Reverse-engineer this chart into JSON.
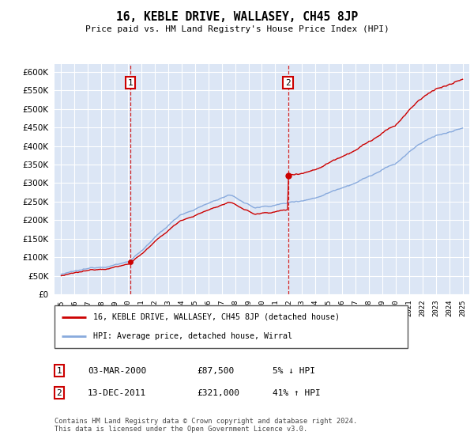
{
  "title": "16, KEBLE DRIVE, WALLASEY, CH45 8JP",
  "subtitle": "Price paid vs. HM Land Registry's House Price Index (HPI)",
  "ylim": [
    0,
    620000
  ],
  "yticks": [
    0,
    50000,
    100000,
    150000,
    200000,
    250000,
    300000,
    350000,
    400000,
    450000,
    500000,
    550000,
    600000
  ],
  "plot_bg_color": "#dce6f5",
  "line_color_red": "#cc0000",
  "line_color_blue": "#88aadd",
  "sale1_date": 2000.17,
  "sale1_price": 87500,
  "sale1_label": "1",
  "sale2_date": 2011.95,
  "sale2_price": 321000,
  "sale2_label": "2",
  "legend_line1": "16, KEBLE DRIVE, WALLASEY, CH45 8JP (detached house)",
  "legend_line2": "HPI: Average price, detached house, Wirral",
  "table_row1_num": "1",
  "table_row1_date": "03-MAR-2000",
  "table_row1_price": "£87,500",
  "table_row1_hpi": "5% ↓ HPI",
  "table_row2_num": "2",
  "table_row2_date": "13-DEC-2011",
  "table_row2_price": "£321,000",
  "table_row2_hpi": "41% ↑ HPI",
  "footnote": "Contains HM Land Registry data © Crown copyright and database right 2024.\nThis data is licensed under the Open Government Licence v3.0.",
  "xmin": 1994.5,
  "xmax": 2025.5
}
